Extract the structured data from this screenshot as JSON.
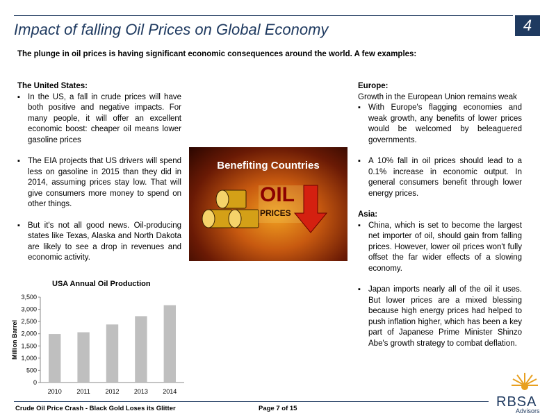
{
  "header": {
    "title": "Impact of falling Oil Prices on Global Economy",
    "page_number": "4"
  },
  "intro": "The plunge in oil prices is having significant economic consequences around the world. A few examples:",
  "left": {
    "heading": "The United States:",
    "bullets": [
      "In the US, a fall in crude prices will have both positive and negative impacts. For many people, it will offer an excellent economic boost: cheaper oil means lower gasoline prices",
      "The EIA projects that US drivers will spend less on gasoline in 2015 than they did in 2014, assuming prices stay low. That will give consumers more money to spend on other things.",
      "But it's not all good news. Oil-producing states like Texas, Alaska and North Dakota are likely to see a drop in revenues and economic activity."
    ]
  },
  "image": {
    "caption": "Benefiting Countries",
    "oil_text": "OIL",
    "prices_text": "PRICES"
  },
  "right": {
    "europe_heading": "Europe:",
    "europe_sub": "Growth in the European Union remains weak",
    "europe_bullets": [
      "With Europe's flagging economies and weak growth, any benefits of lower prices would be welcomed by beleaguered governments.",
      "A 10% fall in oil prices should lead to a 0.1% increase in economic output. In general consumers benefit through lower energy prices."
    ],
    "asia_heading": "Asia:",
    "asia_bullets": [
      "China, which is set to become the largest net importer of oil, should gain from falling prices. However, lower oil prices won't fully offset the far wider effects of a slowing economy.",
      "Japan imports nearly all of the oil it uses. But lower prices are a mixed blessing because high energy prices had helped to push inflation higher, which has been a key part of Japanese Prime Minister Shinzo Abe's growth strategy to combat deflation."
    ]
  },
  "chart_data": {
    "type": "bar",
    "title": "USA Annual Oil Production",
    "ylabel": "Million Barrel",
    "xlabel": "",
    "categories": [
      "2010",
      "2011",
      "2012",
      "2013",
      "2014"
    ],
    "values": [
      1990,
      2060,
      2380,
      2720,
      3170
    ],
    "ylim": [
      0,
      3500
    ],
    "yticks": [
      "0",
      "500",
      "1,000",
      "1,500",
      "2,000",
      "2,500",
      "3,000",
      "3,500"
    ],
    "grid": false,
    "bar_color": "#bfbfbf"
  },
  "footer": {
    "left": "Crude Oil Price Crash - Black Gold Loses its Glitter",
    "page": "Page 7 of 15"
  },
  "logo": {
    "name": "RBSA",
    "sub": "Advisors"
  }
}
